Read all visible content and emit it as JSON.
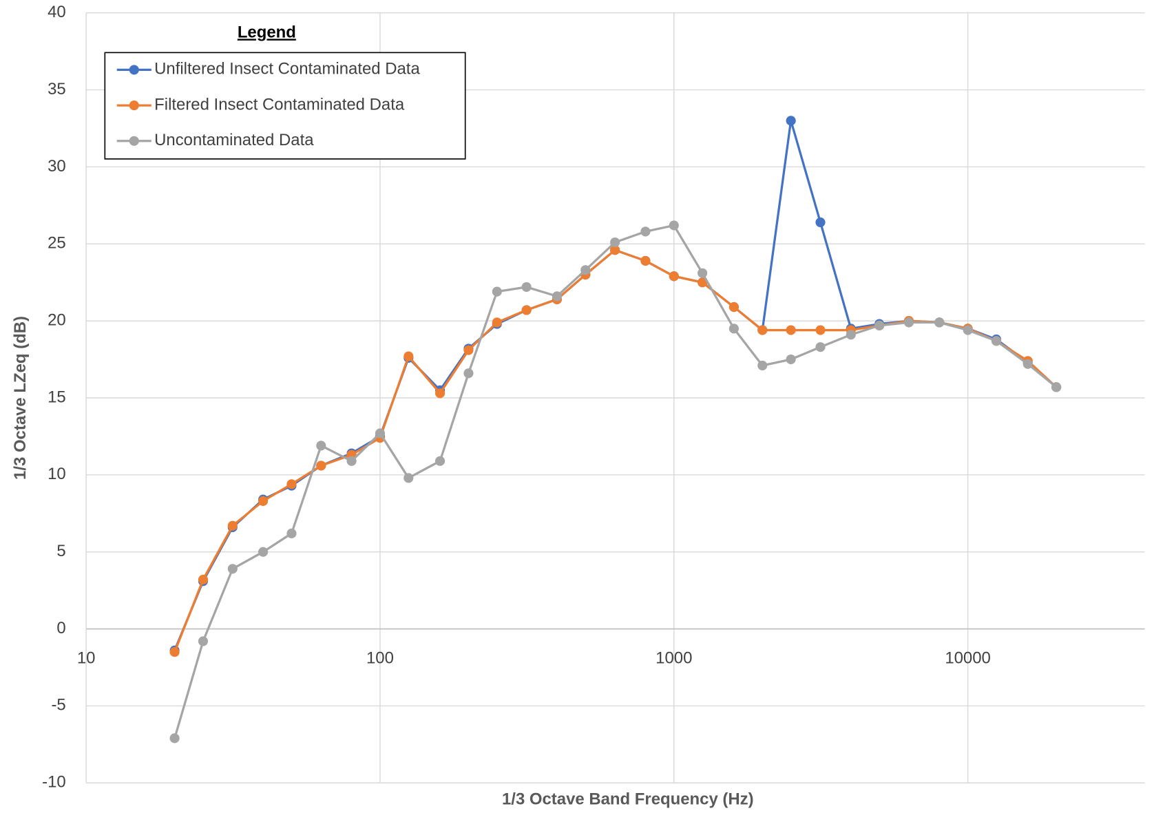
{
  "chart_data": {
    "type": "line",
    "xlabel": "1/3 Octave Band Frequency (Hz)",
    "ylabel": "1/3 Octave LZeq (dB)",
    "legend_title": "Legend",
    "legend": "top-left",
    "log_x": true,
    "grid": true,
    "x": [
      20,
      25,
      31.5,
      40,
      50,
      63,
      80,
      100,
      125,
      160,
      200,
      250,
      315,
      400,
      500,
      630,
      800,
      1000,
      1250,
      1600,
      2000,
      2500,
      3150,
      4000,
      5000,
      6300,
      8000,
      10000,
      12500,
      16000,
      20000
    ],
    "series": [
      {
        "name": "Unfiltered Insect Contaminated Data",
        "color": "#4472c4",
        "values": [
          -1.4,
          3.1,
          6.6,
          8.4,
          9.3,
          10.6,
          11.4,
          12.5,
          17.6,
          15.5,
          18.2,
          19.8,
          20.7,
          21.4,
          23.0,
          24.6,
          23.9,
          22.9,
          22.5,
          20.9,
          19.4,
          33.0,
          26.4,
          19.5,
          19.8,
          20.0,
          19.9,
          19.5,
          18.8,
          17.3,
          15.7
        ]
      },
      {
        "name": "Filtered Insect Contaminated Data",
        "color": "#ed7d31",
        "values": [
          -1.5,
          3.2,
          6.7,
          8.3,
          9.4,
          10.6,
          11.3,
          12.4,
          17.7,
          15.3,
          18.1,
          19.9,
          20.7,
          21.4,
          23.0,
          24.6,
          23.9,
          22.9,
          22.5,
          20.9,
          19.4,
          19.4,
          19.4,
          19.4,
          19.7,
          20.0,
          19.9,
          19.5,
          18.7,
          17.4,
          15.7
        ]
      },
      {
        "name": "Uncontaminated Data",
        "color": "#a5a5a5",
        "values": [
          -7.1,
          -0.8,
          3.9,
          5.0,
          6.2,
          11.9,
          10.9,
          12.7,
          9.8,
          10.9,
          16.6,
          21.9,
          22.2,
          21.6,
          23.3,
          25.1,
          25.8,
          26.2,
          23.1,
          19.5,
          17.1,
          17.5,
          18.3,
          19.1,
          19.7,
          19.9,
          19.9,
          19.4,
          18.7,
          17.2,
          15.7
        ]
      }
    ],
    "xlim": [
      10,
      40000
    ],
    "xticks": [
      10,
      100,
      1000,
      10000
    ],
    "ylim": [
      -10,
      40
    ],
    "yticks": [
      -10,
      -5,
      0,
      5,
      10,
      15,
      20,
      25,
      30,
      35,
      40
    ]
  }
}
